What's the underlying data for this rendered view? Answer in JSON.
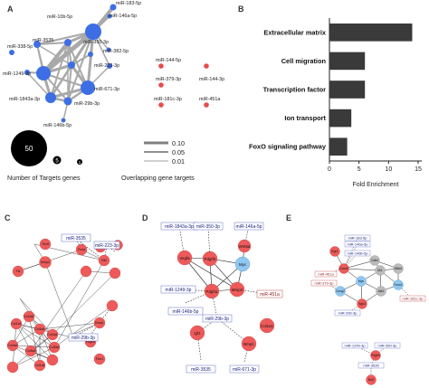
{
  "panels": {
    "a": "A",
    "b": "B",
    "c": "C",
    "d": "D",
    "e": "E"
  },
  "panel_a": {
    "mirnas": [
      "miR-183-5p",
      "miR-10b-5p",
      "miR-146a-5p",
      "miR-338-5p",
      "miR-3535",
      "miR-350-3p",
      "miR-382-5p",
      "miR-223-3p",
      "miR-1249-3p",
      "miR-671-3p",
      "miR-1843a-3p",
      "miR-29b-3p",
      "miR-146b-5p",
      "miR-144-5p",
      "miR-379-3p",
      "miR-144-3p",
      "miR-181c-3p",
      "miR-451a"
    ],
    "legend_circle_value": "50",
    "legend_circle_mid": "5",
    "legend_circle_small": "1",
    "legend_targets_label": "Number of Targets genes",
    "legend_lines": [
      "0.10",
      "0.05",
      "0.01"
    ],
    "legend_lines_label": "Overlapping  gene targets"
  },
  "chart_data": {
    "type": "bar",
    "orientation": "horizontal",
    "categories": [
      "Extracellular matrix",
      "Cell migration",
      "Transcription factor",
      "Ion transport",
      "FoxO signaling pathway"
    ],
    "values": [
      14,
      6,
      6,
      3.7,
      3
    ],
    "xlabel": "Fold Enrichment",
    "xlim": [
      0,
      15
    ],
    "xticks": [
      0,
      5,
      10,
      15
    ],
    "color": "#3a3a3a"
  },
  "panel_c": {
    "nodes": [
      "Fl1",
      "Tbx5",
      "Mmp2",
      "Rora",
      "Gli2",
      "Mmp2",
      "Flk",
      "Col1a1",
      "Col4a1",
      "Col5a1",
      "Col3a1",
      "Col4a2",
      "Col6a1",
      "Col5a2",
      "Col1a2",
      "Bmp1",
      "Pdgfrb",
      "Fbn1"
    ],
    "mirnas": [
      "miR-3535",
      "miR-223-3p",
      "miR-29b-3p"
    ]
  },
  "panel_d": {
    "mirnas": [
      "miR-1843a-3p",
      "miR-350-3p",
      "miR-146a-5p",
      "miR-1249-3p",
      "miR-146b-5p",
      "miR-29b-3p",
      "miR-3535",
      "miR-671-3p",
      "miR-451a"
    ],
    "genes": [
      "Vegfa",
      "Pdgfrb",
      "Wnt5a",
      "Myc",
      "Pdgfra",
      "Mmp2",
      "Col1a1",
      "Igf1",
      "Bmp1"
    ]
  },
  "panel_e": {
    "mirnas": [
      "miR-183-5p",
      "miR-146a-5p",
      "miR-146b-5p",
      "miR-451a",
      "miR-379-3p",
      "miR-29b-3p",
      "miR-181c-3p",
      "miR-1249-3p",
      "miR-350-3p",
      "miR-3535"
    ],
    "genes": [
      "Egr1",
      "Cdk4",
      "Ccnd1",
      "Nfkb1",
      "Myc",
      "Ilk1",
      "Ccng2",
      "Akt1",
      "Foxo1",
      "Sgk3",
      "Pdgfrb",
      "Bcl2"
    ]
  }
}
